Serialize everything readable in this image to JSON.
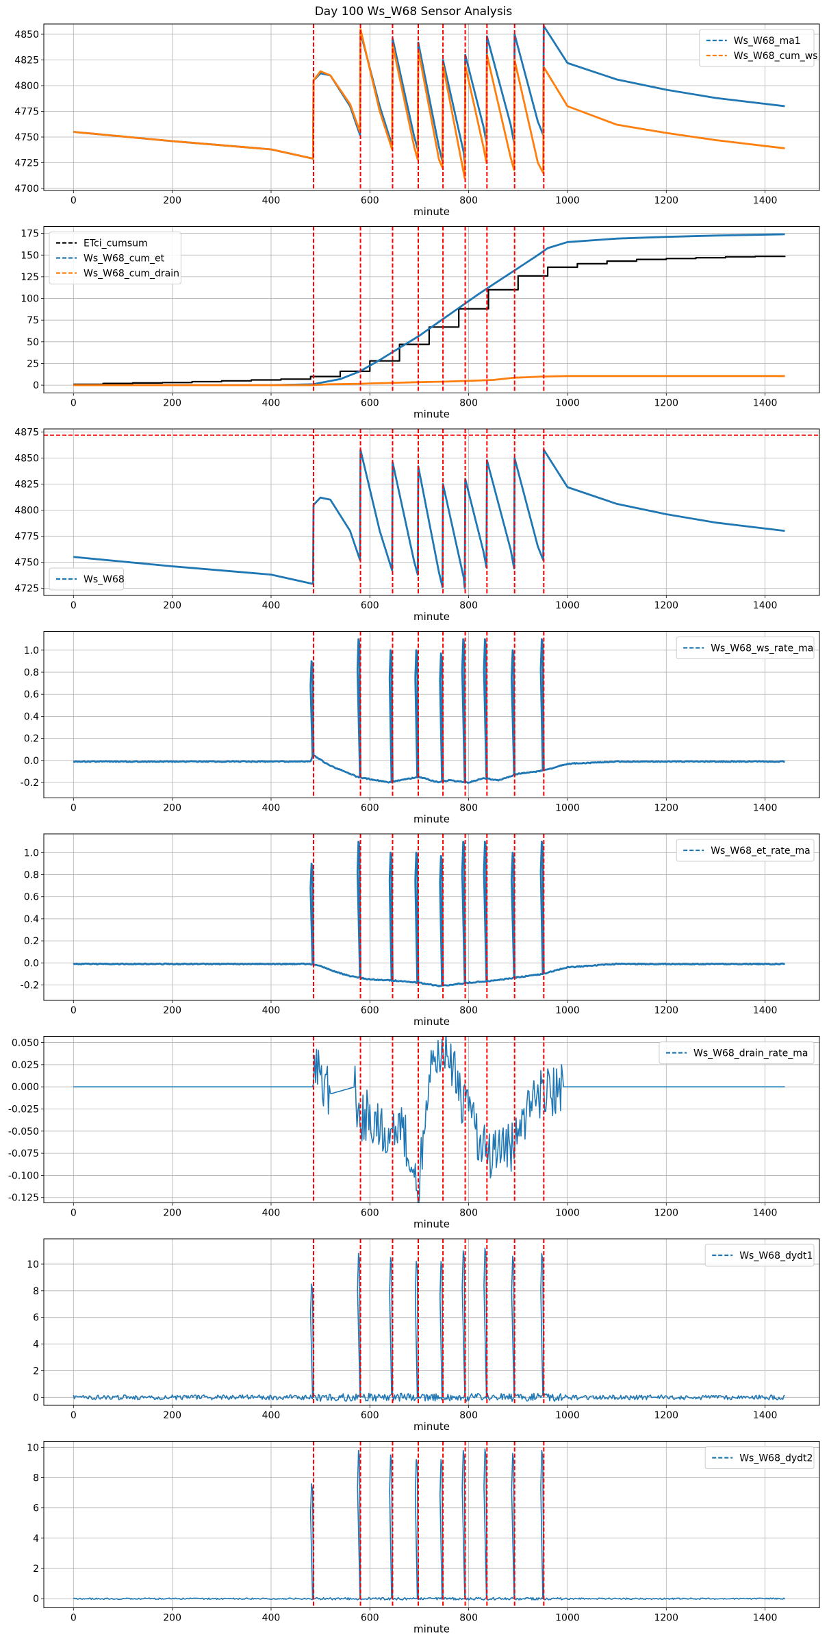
{
  "figure_title": "Day 100 Ws_W68 Sensor Analysis",
  "colors": {
    "blue": "#1f77b4",
    "orange": "#ff7f0e",
    "black": "#000000",
    "event": "#ff0000",
    "grid": "#b0b0b0"
  },
  "event_lines": [
    486,
    581,
    646,
    698,
    748,
    793,
    837,
    893,
    952
  ],
  "chart_data": [
    {
      "id": "p1",
      "type": "line",
      "xlabel": "minute",
      "xlim": [
        -60,
        1510
      ],
      "ylim": [
        4698,
        4860
      ],
      "xticks": [
        0,
        200,
        400,
        600,
        800,
        1000,
        1200,
        1400
      ],
      "yticks": [
        4700,
        4725,
        4750,
        4775,
        4800,
        4825,
        4850
      ],
      "legend_position": "upper-right",
      "series": [
        {
          "name": "Ws_W68_ma1",
          "color": "#1f77b4",
          "style": "dashed",
          "x": [
            0,
            200,
            400,
            485,
            486,
            500,
            520,
            560,
            580,
            581,
            620,
            645,
            646,
            690,
            697,
            698,
            740,
            747,
            748,
            790,
            792,
            793,
            830,
            836,
            837,
            885,
            892,
            893,
            940,
            951,
            952,
            1000,
            1100,
            1200,
            1300,
            1440
          ],
          "y": [
            4755,
            4746,
            4738,
            4729,
            4805,
            4812,
            4810,
            4780,
            4752,
            4852,
            4780,
            4742,
            4846,
            4750,
            4738,
            4842,
            4740,
            4726,
            4825,
            4735,
            4725,
            4830,
            4760,
            4745,
            4848,
            4762,
            4744,
            4850,
            4765,
            4752,
            4858,
            4822,
            4806,
            4796,
            4788,
            4780
          ]
        },
        {
          "name": "Ws_W68_cum_ws",
          "color": "#ff7f0e",
          "style": "dashed",
          "x": [
            0,
            200,
            400,
            485,
            486,
            500,
            520,
            560,
            580,
            581,
            620,
            645,
            646,
            690,
            697,
            698,
            740,
            747,
            748,
            790,
            792,
            793,
            830,
            836,
            837,
            885,
            892,
            893,
            940,
            951,
            952,
            1000,
            1100,
            1200,
            1300,
            1440
          ],
          "y": [
            4755,
            4746,
            4738,
            4729,
            4805,
            4814,
            4810,
            4782,
            4755,
            4855,
            4775,
            4738,
            4840,
            4740,
            4728,
            4835,
            4728,
            4720,
            4820,
            4715,
            4710,
            4820,
            4740,
            4725,
            4830,
            4730,
            4718,
            4825,
            4725,
            4715,
            4818,
            4780,
            4762,
            4754,
            4747,
            4739
          ]
        }
      ]
    },
    {
      "id": "p2",
      "type": "line",
      "xlabel": "minute",
      "xlim": [
        -60,
        1510
      ],
      "ylim": [
        -9,
        183
      ],
      "xticks": [
        0,
        200,
        400,
        600,
        800,
        1000,
        1200,
        1400
      ],
      "yticks": [
        0,
        25,
        50,
        75,
        100,
        125,
        150,
        175
      ],
      "legend_position": "upper-left",
      "series": [
        {
          "name": "ETci_cumsum",
          "color": "#000000",
          "style": "dashed",
          "step": true,
          "x": [
            0,
            60,
            120,
            180,
            240,
            300,
            360,
            420,
            480,
            540,
            600,
            660,
            720,
            780,
            840,
            900,
            960,
            1020,
            1080,
            1140,
            1200,
            1260,
            1320,
            1380,
            1440
          ],
          "y": [
            1,
            2,
            2.5,
            3,
            4,
            5,
            6,
            7,
            10,
            16,
            28,
            47,
            67,
            88,
            110,
            126,
            136,
            140,
            143,
            145,
            146,
            147,
            148,
            148.5,
            149
          ]
        },
        {
          "name": "Ws_W68_cum_et",
          "color": "#1f77b4",
          "style": "dashed",
          "x": [
            0,
            200,
            400,
            485,
            540,
            580,
            620,
            660,
            700,
            740,
            780,
            820,
            860,
            900,
            940,
            960,
            1000,
            1100,
            1200,
            1300,
            1440
          ],
          "y": [
            0,
            0,
            0,
            1,
            7,
            16,
            29,
            43,
            57,
            73,
            89,
            105,
            120,
            135,
            150,
            158,
            165,
            169,
            171,
            172.5,
            174
          ]
        },
        {
          "name": "Ws_W68_cum_drain",
          "color": "#ff7f0e",
          "style": "dashed",
          "x": [
            0,
            480,
            500,
            520,
            580,
            600,
            640,
            700,
            750,
            800,
            850,
            890,
            950,
            1000,
            1440
          ],
          "y": [
            0,
            0,
            0.5,
            1,
            1.5,
            2,
            2.5,
            3.5,
            4,
            5,
            6,
            8.5,
            10,
            10.5,
            10.5
          ]
        }
      ]
    },
    {
      "id": "p3",
      "type": "line",
      "xlabel": "minute",
      "xlim": [
        -60,
        1510
      ],
      "ylim": [
        4718,
        4878
      ],
      "xticks": [
        0,
        200,
        400,
        600,
        800,
        1000,
        1200,
        1400
      ],
      "yticks": [
        4725,
        4750,
        4775,
        4800,
        4825,
        4850,
        4875
      ],
      "hline": 4872,
      "legend_position": "lower-left",
      "series": [
        {
          "name": "Ws_W68",
          "color": "#1f77b4",
          "style": "dashed",
          "x": [
            0,
            200,
            400,
            485,
            486,
            500,
            520,
            560,
            580,
            581,
            620,
            645,
            646,
            690,
            697,
            698,
            740,
            747,
            748,
            790,
            792,
            793,
            830,
            836,
            837,
            885,
            892,
            893,
            940,
            951,
            952,
            1000,
            1100,
            1200,
            1300,
            1440
          ],
          "y": [
            4755,
            4746,
            4738,
            4729,
            4805,
            4812,
            4810,
            4780,
            4752,
            4858,
            4780,
            4742,
            4846,
            4750,
            4738,
            4842,
            4740,
            4726,
            4825,
            4735,
            4725,
            4830,
            4760,
            4745,
            4848,
            4762,
            4744,
            4850,
            4765,
            4752,
            4858,
            4822,
            4806,
            4796,
            4788,
            4780
          ]
        }
      ]
    },
    {
      "id": "p4",
      "type": "line",
      "xlabel": "minute",
      "xlim": [
        -60,
        1510
      ],
      "ylim": [
        -0.34,
        1.17
      ],
      "xticks": [
        0,
        200,
        400,
        600,
        800,
        1000,
        1200,
        1400
      ],
      "yticks": [
        -0.2,
        0.0,
        0.2,
        0.4,
        0.6,
        0.8,
        1.0
      ],
      "legend_position": "upper-right",
      "series": [
        {
          "name": "Ws_W68_ws_rate_ma",
          "color": "#1f77b4",
          "style": "dashed",
          "spikes": [
            486,
            581,
            646,
            698,
            748,
            793,
            837,
            893,
            952
          ],
          "spike_peaks": [
            0.9,
            1.1,
            1.0,
            1.0,
            0.97,
            1.1,
            1.1,
            1.0,
            1.1
          ],
          "x": [
            0,
            480,
            485,
            495,
            520,
            560,
            575,
            600,
            640,
            660,
            700,
            740,
            760,
            800,
            830,
            860,
            900,
            940,
            970,
            1000,
            1100,
            1440
          ],
          "y": [
            -0.01,
            -0.01,
            0.05,
            0.02,
            -0.05,
            -0.12,
            -0.15,
            -0.17,
            -0.2,
            -0.18,
            -0.15,
            -0.2,
            -0.18,
            -0.2,
            -0.16,
            -0.18,
            -0.12,
            -0.1,
            -0.07,
            -0.03,
            -0.01,
            -0.01
          ]
        }
      ]
    },
    {
      "id": "p5",
      "type": "line",
      "xlabel": "minute",
      "xlim": [
        -60,
        1510
      ],
      "ylim": [
        -0.34,
        1.17
      ],
      "xticks": [
        0,
        200,
        400,
        600,
        800,
        1000,
        1200,
        1400
      ],
      "yticks": [
        -0.2,
        0.0,
        0.2,
        0.4,
        0.6,
        0.8,
        1.0
      ],
      "legend_position": "upper-right",
      "series": [
        {
          "name": "Ws_W68_et_rate_ma",
          "color": "#1f77b4",
          "style": "dashed",
          "spikes": [
            486,
            581,
            646,
            698,
            748,
            793,
            837,
            893,
            952
          ],
          "spike_peaks": [
            0.9,
            1.1,
            1.0,
            1.0,
            0.97,
            1.1,
            1.1,
            1.0,
            1.1
          ],
          "x": [
            0,
            480,
            500,
            530,
            560,
            600,
            650,
            700,
            740,
            760,
            800,
            850,
            900,
            950,
            1000,
            1100,
            1440
          ],
          "y": [
            -0.01,
            -0.01,
            -0.03,
            -0.08,
            -0.12,
            -0.15,
            -0.16,
            -0.18,
            -0.21,
            -0.2,
            -0.18,
            -0.16,
            -0.13,
            -0.1,
            -0.04,
            -0.01,
            -0.01
          ]
        }
      ]
    },
    {
      "id": "p6",
      "type": "line",
      "xlabel": "minute",
      "xlim": [
        -60,
        1510
      ],
      "ylim": [
        -0.131,
        0.057
      ],
      "xticks": [
        0,
        200,
        400,
        600,
        800,
        1000,
        1200,
        1400
      ],
      "yticks": [
        -0.125,
        -0.1,
        -0.075,
        -0.05,
        -0.025,
        0.0,
        0.025,
        0.05
      ],
      "ytick_labels": [
        "-0.125",
        "-0.100",
        "-0.075",
        "-0.050",
        "-0.025",
        "0.000",
        "0.025",
        "0.050"
      ],
      "legend_position": "upper-right",
      "series": [
        {
          "name": "Ws_W68_drain_rate_ma",
          "color": "#1f77b4",
          "style": "dashed",
          "noise_ranges": [
            [
              486,
              520
            ],
            [
              570,
              990
            ]
          ],
          "noise_amp": 0.03,
          "x": [
            0,
            486,
            488,
            495,
            505,
            520,
            570,
            580,
            590,
            640,
            660,
            698,
            720,
            760,
            790,
            840,
            890,
            930,
            990,
            1440
          ],
          "y": [
            0,
            0,
            0.035,
            0.02,
            0.0,
            -0.008,
            0,
            -0.045,
            -0.03,
            -0.05,
            -0.03,
            -0.12,
            0.02,
            0.04,
            -0.02,
            -0.08,
            -0.07,
            -0.01,
            0,
            0
          ]
        }
      ]
    },
    {
      "id": "p7",
      "type": "line",
      "xlabel": "minute",
      "xlim": [
        -60,
        1510
      ],
      "ylim": [
        -0.6,
        11.9
      ],
      "xticks": [
        0,
        200,
        400,
        600,
        800,
        1000,
        1200,
        1400
      ],
      "yticks": [
        0,
        2,
        4,
        6,
        8,
        10
      ],
      "legend_position": "upper-right",
      "series": [
        {
          "name": "Ws_W68_dydt1",
          "color": "#1f77b4",
          "style": "dashed",
          "spikes": [
            486,
            581,
            646,
            698,
            748,
            793,
            837,
            893,
            952
          ],
          "spike_peaks": [
            8.5,
            10.8,
            10.5,
            10.2,
            10.2,
            11.0,
            11.2,
            10.6,
            10.8
          ],
          "noise_amp": 0.3,
          "x": [
            0,
            1440
          ],
          "y": [
            0,
            0
          ]
        }
      ]
    },
    {
      "id": "p8",
      "type": "line",
      "xlabel": "minute",
      "xlim": [
        -60,
        1510
      ],
      "ylim": [
        -0.6,
        10.4
      ],
      "xticks": [
        0,
        200,
        400,
        600,
        800,
        1000,
        1200,
        1400
      ],
      "yticks": [
        0,
        2,
        4,
        6,
        8,
        10
      ],
      "legend_position": "upper-right",
      "series": [
        {
          "name": "Ws_W68_dydt2",
          "color": "#1f77b4",
          "style": "dashed",
          "spikes": [
            486,
            581,
            646,
            698,
            748,
            793,
            837,
            893,
            952
          ],
          "spike_peaks": [
            7.6,
            9.8,
            9.5,
            9.2,
            9.2,
            9.8,
            9.9,
            9.6,
            9.8
          ],
          "noise_amp": 0.08,
          "x": [
            0,
            1440
          ],
          "y": [
            0,
            0
          ]
        }
      ]
    }
  ]
}
